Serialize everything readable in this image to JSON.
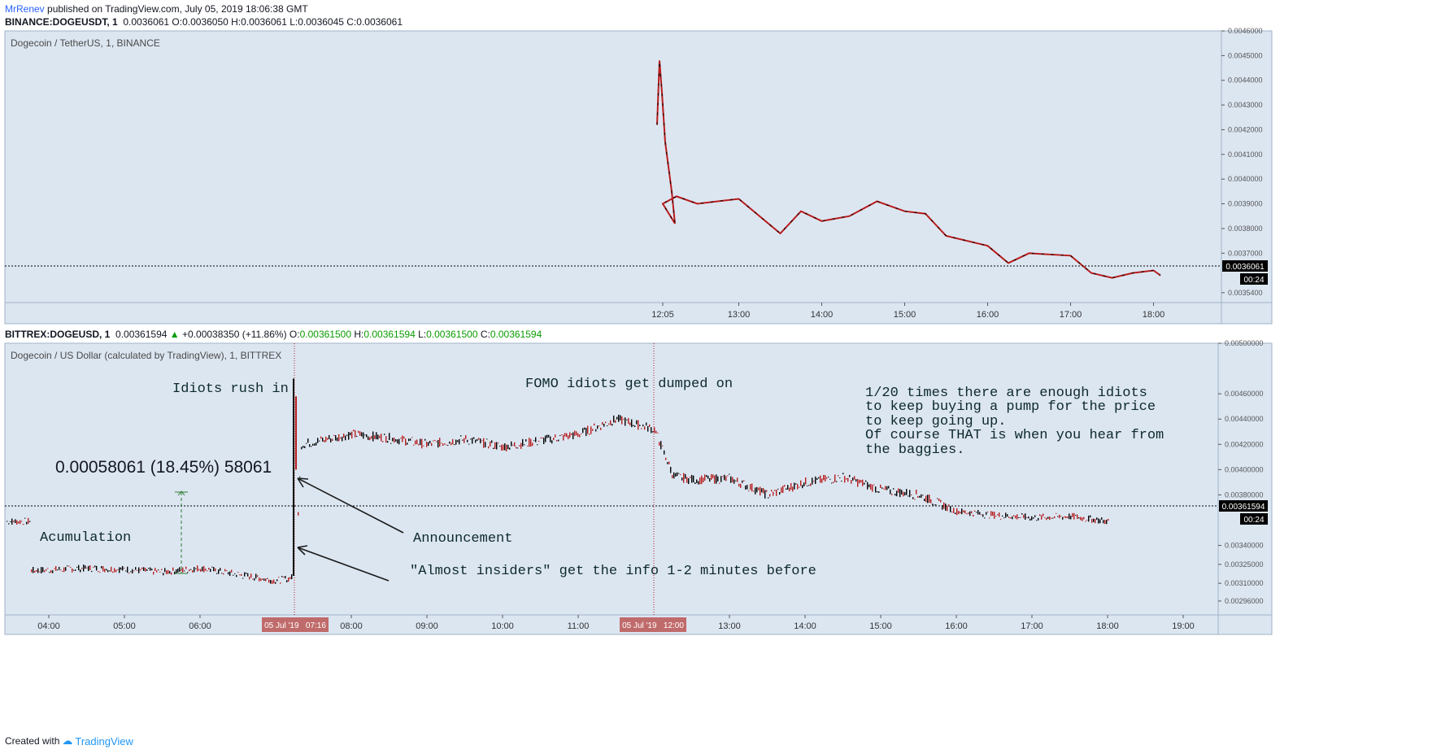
{
  "header": {
    "author": "MrRenev",
    "published": "published on TradingView.com, July 05, 2019 18:06:38 GMT"
  },
  "top": {
    "symbol": "BINANCE:DOGEUSDT, 1",
    "ohlc": "0.0036061 O:0.0036050 H:0.0036061 L:0.0036045 C:0.0036061",
    "pane_label": "Dogecoin / TetherUS, 1, BINANCE",
    "last_price": "0.0036061",
    "countdown": "00:24"
  },
  "bottom": {
    "symbol": "BITTREX:DOGEUSD, 1",
    "last": "0.00361594",
    "change": "+0.00038350 (+11.86%)",
    "o": "0.00361500",
    "h": "0.00361594",
    "l": "0.00361500",
    "c": "0.00361594",
    "pane_label": "Dogecoin / US Dollar (calculated by TradingView), 1, BITTREX",
    "last_price": "0.00361594",
    "countdown": "00:24",
    "cross_labels": [
      "05 Jul '19   07:16",
      "05 Jul '19   12:00"
    ]
  },
  "annotations": {
    "idiots_rush": "Idiots rush in",
    "fomo": "FOMO idiots get dumped on",
    "note_lines": [
      "1/20 times there are enough idiots",
      "to keep buying a pump for the price",
      "to keep going up.",
      "Of course THAT is when you hear from",
      "the baggies."
    ],
    "measure": "0.00058061 (18.45%) 58061",
    "accumulation": "Acumulation",
    "announcement": "Announcement",
    "insiders": "\"Almost insiders\" get the info 1-2 minutes before"
  },
  "footer": {
    "created_with": "Created with",
    "brand": "TradingView"
  },
  "colors": {
    "pane_bg": "#dce6f1",
    "up": "#000000",
    "down": "#b71c1c",
    "text": "#0d2a2a"
  },
  "chart_data": [
    {
      "type": "candlestick",
      "title": "Dogecoin / TetherUS, 1, BINANCE",
      "x_ticks": [
        "12:05",
        "13:00",
        "14:00",
        "15:00",
        "16:00",
        "17:00",
        "18:00"
      ],
      "y_ticks": [
        "0.0046000",
        "0.0045000",
        "0.0044000",
        "0.0043000",
        "0.0042000",
        "0.0041000",
        "0.0040000",
        "0.0039000",
        "0.0038000",
        "0.0037000",
        "0.0036061",
        "0.0035400"
      ],
      "ylim": [
        0.0035,
        0.0046
      ],
      "series": [
        {
          "x": [
            "12:00",
            "12:05",
            "12:15",
            "12:30",
            "13:00",
            "13:30",
            "13:45",
            "14:00",
            "14:20",
            "14:40",
            "15:00",
            "15:15",
            "15:30",
            "16:00",
            "16:15",
            "16:30",
            "17:00",
            "17:15",
            "17:30",
            "17:45",
            "18:00",
            "18:05"
          ],
          "values": [
            0.00425,
            0.0039,
            0.00393,
            0.0039,
            0.00392,
            0.00378,
            0.00387,
            0.00383,
            0.00385,
            0.00391,
            0.00387,
            0.00386,
            0.00377,
            0.00373,
            0.00366,
            0.0037,
            0.00369,
            0.00362,
            0.0036,
            0.00362,
            0.00363,
            0.00361
          ]
        }
      ]
    },
    {
      "type": "candlestick",
      "title": "Dogecoin / US Dollar (calculated by TradingView), 1, BITTREX",
      "x_ticks": [
        "04:00",
        "05:00",
        "06:00",
        "07:00",
        "08:00",
        "09:00",
        "10:00",
        "11:00",
        "12:00",
        "13:00",
        "14:00",
        "15:00",
        "16:00",
        "17:00",
        "18:00",
        "19:00"
      ],
      "y_ticks": [
        "0.00500000",
        "0.00460000",
        "0.00440000",
        "0.00420000",
        "0.00400000",
        "0.00380000",
        "0.00361594",
        "0.00340000",
        "0.00325000",
        "0.00310000",
        "0.00296000"
      ],
      "ylim": [
        0.00285,
        0.005
      ],
      "series": [
        {
          "x": [
            "03:45",
            "04:30",
            "05:00",
            "05:30",
            "06:00",
            "06:30",
            "07:00",
            "07:15",
            "07:20",
            "08:00",
            "08:30",
            "09:00",
            "09:30",
            "10:00",
            "10:30",
            "11:00",
            "11:30",
            "12:00",
            "12:15",
            "12:30",
            "13:00",
            "13:30",
            "14:00",
            "14:30",
            "15:00",
            "15:30",
            "16:00",
            "16:30",
            "17:00",
            "17:30",
            "18:00"
          ],
          "values": [
            0.0032,
            0.00322,
            0.00321,
            0.00319,
            0.00322,
            0.00317,
            0.00312,
            0.00315,
            0.0042,
            0.00428,
            0.00425,
            0.0042,
            0.00424,
            0.00418,
            0.00423,
            0.00428,
            0.0044,
            0.00432,
            0.00395,
            0.00392,
            0.00393,
            0.0038,
            0.0039,
            0.00394,
            0.00384,
            0.0038,
            0.00367,
            0.00364,
            0.00362,
            0.00363,
            0.00359
          ]
        }
      ]
    }
  ]
}
